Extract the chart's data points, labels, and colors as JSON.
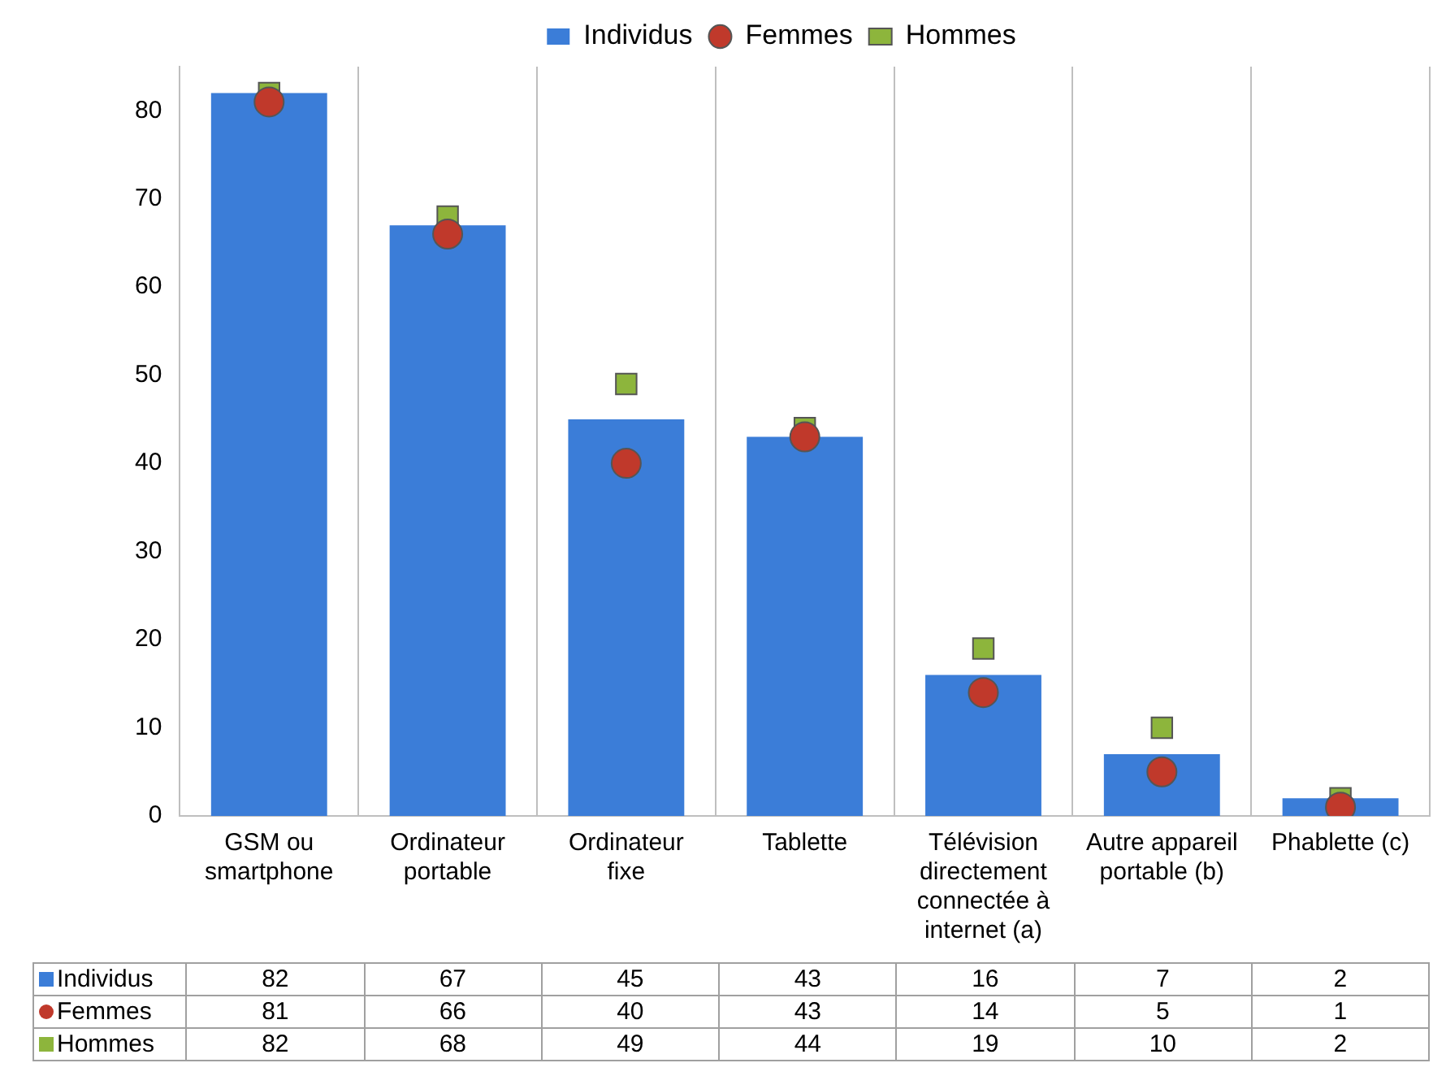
{
  "chart_data": {
    "type": "bar",
    "categories": [
      "GSM ou smartphone",
      "Ordinateur portable",
      "Ordinateur fixe",
      "Tablette",
      "Télévision directement connectée à internet (a)",
      "Autre appareil portable (b)",
      "Phablette (c)"
    ],
    "series": [
      {
        "name": "Individus",
        "color": "#3b7dd8",
        "values": [
          82,
          67,
          45,
          43,
          16,
          7,
          2
        ]
      },
      {
        "name": "Femmes",
        "type": "scatter",
        "marker": "circle",
        "color": "#c0392b",
        "x": [
          "GSM ou smartphone",
          "Ordinateur portable",
          "Ordinateur fixe",
          "Tablette",
          "Télévision directement connectée à internet (a)",
          "Autre appareil portable (b)",
          "Phablette (c)"
        ],
        "values": [
          81,
          66,
          40,
          43,
          14,
          5,
          1
        ]
      },
      {
        "name": "Hommes",
        "type": "scatter",
        "marker": "square",
        "color": "#8db53c",
        "x": [
          "GSM ou smartphone",
          "Ordinateur portable",
          "Ordinateur fixe",
          "Tablette",
          "Télévision directement connectée à internet (a)",
          "Autre appareil portable (b)",
          "Phablette (c)"
        ],
        "values": [
          82,
          68,
          49,
          44,
          19,
          10,
          2
        ]
      }
    ],
    "ylim": [
      0,
      85
    ],
    "yticks": [
      0,
      10,
      20,
      30,
      40,
      50,
      60,
      70,
      80
    ],
    "grid": "x",
    "legend": "top",
    "data_labels": true
  }
}
